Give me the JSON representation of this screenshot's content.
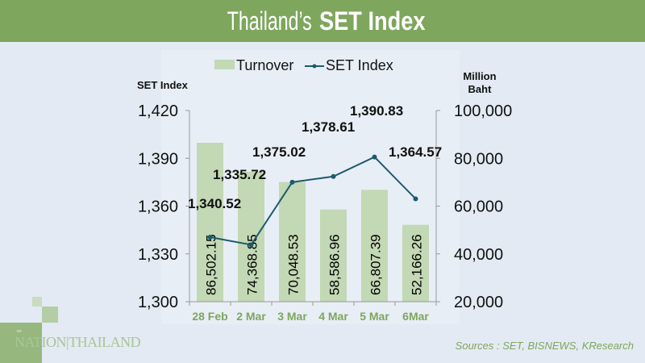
{
  "header": {
    "title_prefix": "Thailand’s ",
    "title_bold": "SET Index"
  },
  "chart_data": {
    "type": "bar+line",
    "categories": [
      "28 Feb",
      "2 Mar",
      "3 Mar",
      "4 Mar",
      "5 Mar",
      "6Mar"
    ],
    "series": [
      {
        "name": "Turnover",
        "type": "bar",
        "axis": "right",
        "color": "#c3d8b4",
        "values": [
          86502.15,
          74368.85,
          70048.53,
          58586.96,
          66807.39,
          52166.26
        ],
        "labels": [
          "86,502.15",
          "74,368.85",
          "70,048.53",
          "58,586.96",
          "66,807.39",
          "52,166.26"
        ]
      },
      {
        "name": "SET Index",
        "type": "line",
        "axis": "left",
        "color": "#1c5a6e",
        "values": [
          1340.52,
          1335.72,
          1375.02,
          1378.61,
          1390.83,
          1364.57
        ],
        "labels": [
          "1,340.52",
          "1,335.72",
          "1,375.02",
          "1,378.61",
          "1,390.83",
          "1,364.57"
        ]
      }
    ],
    "y_left": {
      "label": "SET Index",
      "range": [
        1300,
        1420
      ],
      "ticks": [
        "1,300",
        "1,330",
        "1,360",
        "1,390",
        "1,420"
      ]
    },
    "y_right": {
      "label_line1": "Million",
      "label_line2": "Baht",
      "range": [
        20000,
        100000
      ],
      "ticks": [
        "20,000",
        "40,000",
        "60,000",
        "80,000",
        "100,000"
      ]
    },
    "legend": {
      "position": "top",
      "items": [
        "Turnover",
        "SET Index"
      ]
    },
    "grid": false,
    "category_label_color": "#7ea65d"
  },
  "logo": {
    "small": "THE",
    "text": "NATION|THAILAND"
  },
  "sources": "Sources : SET, BISNEWS, KResearch"
}
